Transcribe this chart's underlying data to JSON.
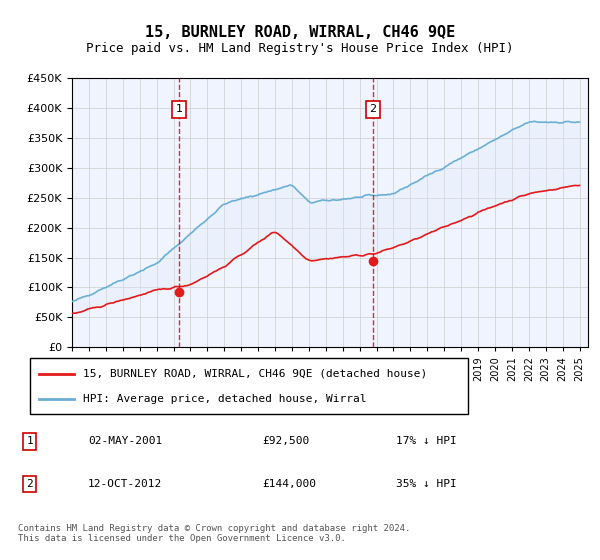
{
  "title": "15, BURNLEY ROAD, WIRRAL, CH46 9QE",
  "subtitle": "Price paid vs. HM Land Registry's House Price Index (HPI)",
  "legend_line1": "15, BURNLEY ROAD, WIRRAL, CH46 9QE (detached house)",
  "legend_line2": "HPI: Average price, detached house, Wirral",
  "transaction1_date": "02-MAY-2001",
  "transaction1_price": 92500,
  "transaction1_label": "17% ↓ HPI",
  "transaction1_year": 2001.33,
  "transaction2_date": "12-OCT-2012",
  "transaction2_price": 144000,
  "transaction2_label": "35% ↓ HPI",
  "transaction2_year": 2012.78,
  "footer": "Contains HM Land Registry data © Crown copyright and database right 2024.\nThis data is licensed under the Open Government Licence v3.0.",
  "hpi_color": "#6baed6",
  "price_color": "#e31a1c",
  "fill_color": "#deebf7",
  "marker_box_color": "#cc0000",
  "vline_color": "#cc0000",
  "ylim": [
    0,
    450000
  ],
  "xlim_start": 1995,
  "xlim_end": 2025.5,
  "yticks": [
    0,
    50000,
    100000,
    150000,
    200000,
    250000,
    300000,
    350000,
    400000,
    450000
  ]
}
